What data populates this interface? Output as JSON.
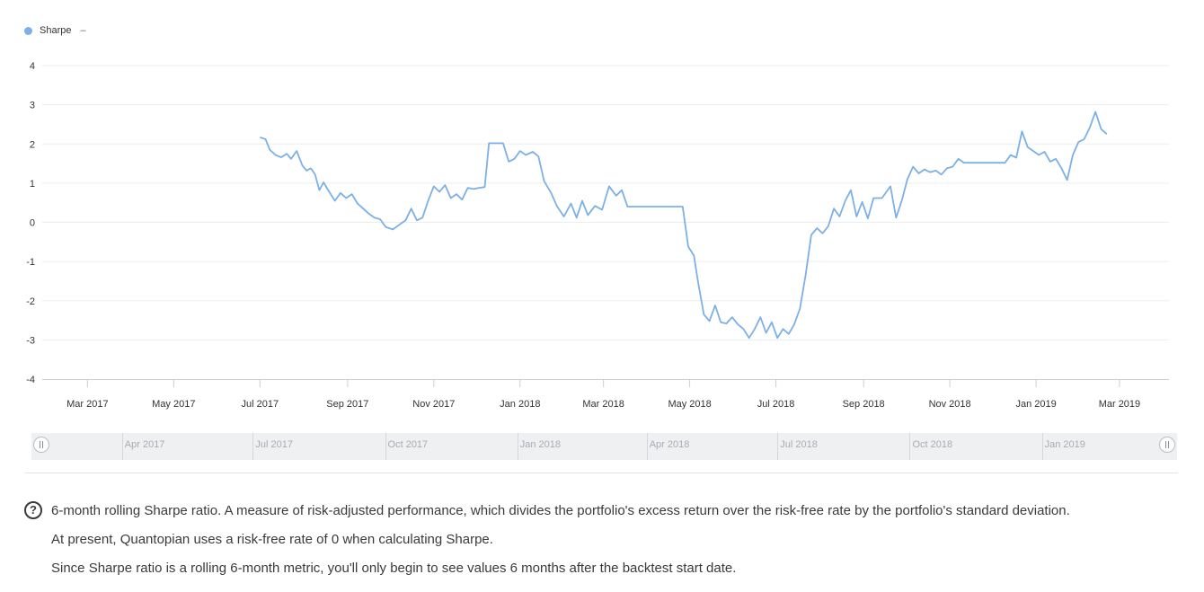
{
  "legend": {
    "label": "Sharpe",
    "toggle": "–",
    "color": "#7cb0e6"
  },
  "chart_data": {
    "type": "line",
    "title": "",
    "xlabel": "",
    "ylabel": "",
    "ylim": [
      -4,
      4
    ],
    "yticks": [
      4,
      3,
      2,
      1,
      0,
      -1,
      -2,
      -3,
      -4
    ],
    "xlim": [
      "2017-01-28",
      "2019-04-05"
    ],
    "xticks": [
      {
        "date": "2017-03-01",
        "label": "Mar 2017"
      },
      {
        "date": "2017-05-01",
        "label": "May 2017"
      },
      {
        "date": "2017-07-01",
        "label": "Jul 2017"
      },
      {
        "date": "2017-09-01",
        "label": "Sep 2017"
      },
      {
        "date": "2017-11-01",
        "label": "Nov 2017"
      },
      {
        "date": "2018-01-01",
        "label": "Jan 2018"
      },
      {
        "date": "2018-03-01",
        "label": "Mar 2018"
      },
      {
        "date": "2018-05-01",
        "label": "May 2018"
      },
      {
        "date": "2018-07-01",
        "label": "Jul 2018"
      },
      {
        "date": "2018-09-01",
        "label": "Sep 2018"
      },
      {
        "date": "2018-11-01",
        "label": "Nov 2018"
      },
      {
        "date": "2019-01-01",
        "label": "Jan 2019"
      },
      {
        "date": "2019-03-01",
        "label": "Mar 2019"
      }
    ],
    "grid": true,
    "legend_position": "top-left",
    "series": [
      {
        "name": "Sharpe",
        "color": "#7cb0e6",
        "points": [
          [
            "2017-07-01",
            2.17
          ],
          [
            "2017-07-05",
            2.12
          ],
          [
            "2017-07-08",
            1.85
          ],
          [
            "2017-07-12",
            1.72
          ],
          [
            "2017-07-16",
            1.66
          ],
          [
            "2017-07-20",
            1.75
          ],
          [
            "2017-07-23",
            1.62
          ],
          [
            "2017-07-27",
            1.82
          ],
          [
            "2017-07-31",
            1.45
          ],
          [
            "2017-08-03",
            1.32
          ],
          [
            "2017-08-06",
            1.38
          ],
          [
            "2017-08-09",
            1.22
          ],
          [
            "2017-08-12",
            0.82
          ],
          [
            "2017-08-15",
            1.02
          ],
          [
            "2017-08-19",
            0.78
          ],
          [
            "2017-08-23",
            0.55
          ],
          [
            "2017-08-27",
            0.75
          ],
          [
            "2017-08-31",
            0.62
          ],
          [
            "2017-09-04",
            0.72
          ],
          [
            "2017-09-08",
            0.48
          ],
          [
            "2017-09-12",
            0.35
          ],
          [
            "2017-09-16",
            0.22
          ],
          [
            "2017-09-20",
            0.12
          ],
          [
            "2017-09-24",
            0.08
          ],
          [
            "2017-09-28",
            -0.12
          ],
          [
            "2017-10-03",
            -0.18
          ],
          [
            "2017-10-08",
            -0.05
          ],
          [
            "2017-10-12",
            0.05
          ],
          [
            "2017-10-16",
            0.35
          ],
          [
            "2017-10-20",
            0.05
          ],
          [
            "2017-10-24",
            0.12
          ],
          [
            "2017-10-28",
            0.55
          ],
          [
            "2017-11-01",
            0.92
          ],
          [
            "2017-11-05",
            0.78
          ],
          [
            "2017-11-09",
            0.95
          ],
          [
            "2017-11-13",
            0.62
          ],
          [
            "2017-11-17",
            0.72
          ],
          [
            "2017-11-21",
            0.58
          ],
          [
            "2017-11-25",
            0.88
          ],
          [
            "2017-11-29",
            0.85
          ],
          [
            "2017-12-03",
            0.88
          ],
          [
            "2017-12-07",
            0.9
          ],
          [
            "2017-12-10",
            2.02
          ],
          [
            "2017-12-20",
            2.02
          ],
          [
            "2017-12-24",
            1.55
          ],
          [
            "2017-12-28",
            1.62
          ],
          [
            "2018-01-01",
            1.82
          ],
          [
            "2018-01-05",
            1.72
          ],
          [
            "2018-01-10",
            1.8
          ],
          [
            "2018-01-14",
            1.68
          ],
          [
            "2018-01-18",
            1.05
          ],
          [
            "2018-01-23",
            0.75
          ],
          [
            "2018-01-27",
            0.42
          ],
          [
            "2018-02-01",
            0.15
          ],
          [
            "2018-02-06",
            0.48
          ],
          [
            "2018-02-10",
            0.12
          ],
          [
            "2018-02-14",
            0.55
          ],
          [
            "2018-02-18",
            0.18
          ],
          [
            "2018-02-23",
            0.42
          ],
          [
            "2018-02-28",
            0.32
          ],
          [
            "2018-03-05",
            0.92
          ],
          [
            "2018-03-10",
            0.68
          ],
          [
            "2018-03-14",
            0.82
          ],
          [
            "2018-03-18",
            0.4
          ],
          [
            "2018-04-26",
            0.4
          ],
          [
            "2018-04-30",
            -0.62
          ],
          [
            "2018-05-04",
            -0.85
          ],
          [
            "2018-05-07",
            -1.55
          ],
          [
            "2018-05-11",
            -2.35
          ],
          [
            "2018-05-15",
            -2.52
          ],
          [
            "2018-05-19",
            -2.12
          ],
          [
            "2018-05-23",
            -2.55
          ],
          [
            "2018-05-27",
            -2.58
          ],
          [
            "2018-05-31",
            -2.42
          ],
          [
            "2018-06-04",
            -2.6
          ],
          [
            "2018-06-08",
            -2.72
          ],
          [
            "2018-06-12",
            -2.95
          ],
          [
            "2018-06-16",
            -2.72
          ],
          [
            "2018-06-20",
            -2.42
          ],
          [
            "2018-06-24",
            -2.82
          ],
          [
            "2018-06-28",
            -2.55
          ],
          [
            "2018-07-02",
            -2.95
          ],
          [
            "2018-07-06",
            -2.72
          ],
          [
            "2018-07-10",
            -2.85
          ],
          [
            "2018-07-14",
            -2.6
          ],
          [
            "2018-07-18",
            -2.2
          ],
          [
            "2018-07-22",
            -1.35
          ],
          [
            "2018-07-26",
            -0.32
          ],
          [
            "2018-07-30",
            -0.15
          ],
          [
            "2018-08-03",
            -0.28
          ],
          [
            "2018-08-07",
            -0.1
          ],
          [
            "2018-08-11",
            0.35
          ],
          [
            "2018-08-15",
            0.15
          ],
          [
            "2018-08-19",
            0.55
          ],
          [
            "2018-08-23",
            0.82
          ],
          [
            "2018-08-27",
            0.15
          ],
          [
            "2018-08-31",
            0.52
          ],
          [
            "2018-09-04",
            0.1
          ],
          [
            "2018-09-08",
            0.62
          ],
          [
            "2018-09-14",
            0.62
          ],
          [
            "2018-09-20",
            0.92
          ],
          [
            "2018-09-24",
            0.12
          ],
          [
            "2018-09-28",
            0.55
          ],
          [
            "2018-10-02",
            1.1
          ],
          [
            "2018-10-06",
            1.42
          ],
          [
            "2018-10-10",
            1.25
          ],
          [
            "2018-10-14",
            1.35
          ],
          [
            "2018-10-18",
            1.28
          ],
          [
            "2018-10-22",
            1.32
          ],
          [
            "2018-10-26",
            1.22
          ],
          [
            "2018-10-30",
            1.38
          ],
          [
            "2018-11-03",
            1.42
          ],
          [
            "2018-11-07",
            1.62
          ],
          [
            "2018-11-11",
            1.52
          ],
          [
            "2018-12-10",
            1.52
          ],
          [
            "2018-12-14",
            1.72
          ],
          [
            "2018-12-18",
            1.65
          ],
          [
            "2018-12-22",
            2.32
          ],
          [
            "2018-12-26",
            1.92
          ],
          [
            "2018-12-30",
            1.82
          ],
          [
            "2019-01-03",
            1.72
          ],
          [
            "2019-01-07",
            1.8
          ],
          [
            "2019-01-11",
            1.55
          ],
          [
            "2019-01-15",
            1.62
          ],
          [
            "2019-01-19",
            1.38
          ],
          [
            "2019-01-23",
            1.08
          ],
          [
            "2019-01-27",
            1.72
          ],
          [
            "2019-01-31",
            2.05
          ],
          [
            "2019-02-04",
            2.12
          ],
          [
            "2019-02-08",
            2.42
          ],
          [
            "2019-02-12",
            2.82
          ],
          [
            "2019-02-16",
            2.38
          ],
          [
            "2019-02-20",
            2.25
          ]
        ]
      }
    ],
    "navigator": {
      "labels": [
        "Apr 2017",
        "Jul 2017",
        "Oct 2017",
        "Jan 2018",
        "Apr 2018",
        "Jul 2018",
        "Oct 2018",
        "Jan 2019"
      ]
    }
  },
  "description": {
    "line1": "6-month rolling Sharpe ratio. A measure of risk-adjusted performance, which divides the portfolio's excess return over the risk-free rate by the portfolio's standard deviation.",
    "line2": "At present, Quantopian uses a risk-free rate of 0 when calculating Sharpe.",
    "line3": "Since Sharpe ratio is a rolling 6-month metric, you'll only begin to see values 6 months after the backtest start date."
  }
}
